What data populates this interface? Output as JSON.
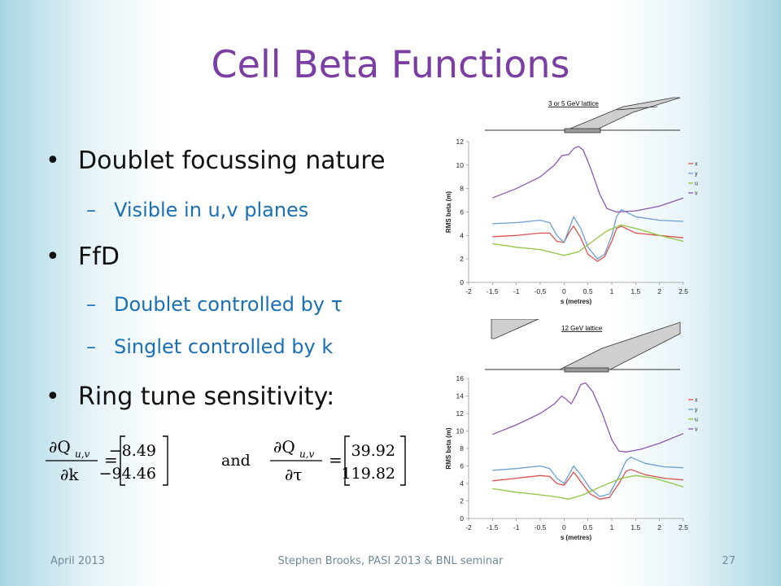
{
  "slide": {
    "title": "Cell Beta Functions",
    "bullets": [
      {
        "level": 1,
        "text": "Doublet focussing nature"
      },
      {
        "level": 2,
        "text": "Visible in u,v planes"
      },
      {
        "level": 1,
        "text": "FfD"
      },
      {
        "level": 2,
        "text": "Doublet controlled by τ"
      },
      {
        "level": 2,
        "text": "Singlet controlled by k"
      },
      {
        "level": 1,
        "text": "Ring tune sensitivity:"
      }
    ],
    "equation": {
      "lhs1_num": "∂Q",
      "lhs1_sub": "u,v",
      "lhs1_den": "∂k",
      "vec1": [
        "−8.49",
        "−94.46"
      ],
      "and": "and",
      "lhs2_num": "∂Q",
      "lhs2_sub": "u,v",
      "lhs2_den": "∂τ",
      "vec2": [
        "39.92",
        "119.82"
      ]
    },
    "footer": {
      "left": "April 2013",
      "center": "Stephen Brooks, PASI 2013 & BNL seminar",
      "right": "27"
    }
  },
  "colors": {
    "title": "#7b3ea3",
    "sub_bullet": "#1b6fb3",
    "x": "#d9534f",
    "y": "#6a9fd4",
    "u": "#8dc63f",
    "v": "#8b58b4"
  },
  "chart_data": [
    {
      "type": "line",
      "title": "3 or 5 GeV lattice",
      "xlabel": "s (metres)",
      "ylabel": "RMS beta (m)",
      "xlim": [
        -2,
        2.5
      ],
      "ylim": [
        0,
        12
      ],
      "xticks": [
        "-2",
        "-1.5",
        "-1",
        "-0.5",
        "0",
        "0.5",
        "1",
        "1.5",
        "2",
        "2.5"
      ],
      "yticks": [
        "0",
        "2",
        "4",
        "6",
        "8",
        "10",
        "12"
      ],
      "legend": [
        "x",
        "y",
        "u",
        "v"
      ],
      "series": [
        {
          "name": "x",
          "points": [
            [
              -1.5,
              3.9
            ],
            [
              -1,
              4.0
            ],
            [
              -0.5,
              4.2
            ],
            [
              -0.3,
              4.2
            ],
            [
              -0.15,
              3.5
            ],
            [
              0,
              3.4
            ],
            [
              0.1,
              4.2
            ],
            [
              0.2,
              4.8
            ],
            [
              0.35,
              3.8
            ],
            [
              0.5,
              2.4
            ],
            [
              0.7,
              1.8
            ],
            [
              0.85,
              2.2
            ],
            [
              1.0,
              3.5
            ],
            [
              1.1,
              4.6
            ],
            [
              1.2,
              4.8
            ],
            [
              1.5,
              4.2
            ],
            [
              2,
              4.0
            ],
            [
              2.5,
              3.8
            ]
          ]
        },
        {
          "name": "y",
          "points": [
            [
              -1.5,
              5.0
            ],
            [
              -1,
              5.1
            ],
            [
              -0.5,
              5.3
            ],
            [
              -0.3,
              5.1
            ],
            [
              -0.15,
              4.0
            ],
            [
              0,
              3.4
            ],
            [
              0.1,
              4.5
            ],
            [
              0.2,
              5.6
            ],
            [
              0.35,
              4.6
            ],
            [
              0.5,
              3.0
            ],
            [
              0.7,
              2.0
            ],
            [
              0.85,
              2.4
            ],
            [
              1.0,
              4.0
            ],
            [
              1.1,
              5.6
            ],
            [
              1.2,
              6.2
            ],
            [
              1.5,
              5.6
            ],
            [
              2,
              5.3
            ],
            [
              2.5,
              5.2
            ]
          ]
        },
        {
          "name": "u",
          "points": [
            [
              -1.5,
              3.3
            ],
            [
              -1,
              3.0
            ],
            [
              -0.5,
              2.8
            ],
            [
              0,
              2.3
            ],
            [
              0.3,
              2.6
            ],
            [
              0.6,
              3.5
            ],
            [
              0.9,
              4.4
            ],
            [
              1.2,
              4.9
            ],
            [
              1.6,
              4.5
            ],
            [
              2,
              4.0
            ],
            [
              2.5,
              3.5
            ]
          ]
        },
        {
          "name": "v",
          "points": [
            [
              -1.5,
              7.2
            ],
            [
              -1,
              8.0
            ],
            [
              -0.5,
              9.0
            ],
            [
              -0.2,
              10.0
            ],
            [
              -0.05,
              10.8
            ],
            [
              0.1,
              10.9
            ],
            [
              0.2,
              11.4
            ],
            [
              0.3,
              11.6
            ],
            [
              0.4,
              11.3
            ],
            [
              0.55,
              9.8
            ],
            [
              0.75,
              7.5
            ],
            [
              0.9,
              6.3
            ],
            [
              1.1,
              6.0
            ],
            [
              1.5,
              6.1
            ],
            [
              2,
              6.5
            ],
            [
              2.5,
              7.2
            ]
          ]
        }
      ]
    },
    {
      "type": "line",
      "title": "12 GeV lattice",
      "xlabel": "s (metres)",
      "ylabel": "RMS beta (m)",
      "xlim": [
        -2,
        2.5
      ],
      "ylim": [
        0,
        16
      ],
      "xticks": [
        "-2",
        "-1.5",
        "-1",
        "-0.5",
        "0",
        "0.5",
        "1",
        "1.5",
        "2",
        "2.5"
      ],
      "yticks": [
        "0",
        "2",
        "4",
        "6",
        "8",
        "10",
        "12",
        "14",
        "16"
      ],
      "legend": [
        "x",
        "y",
        "u",
        "v"
      ],
      "series": [
        {
          "name": "x",
          "points": [
            [
              -1.5,
              4.3
            ],
            [
              -1,
              4.6
            ],
            [
              -0.5,
              4.9
            ],
            [
              -0.3,
              4.8
            ],
            [
              -0.15,
              4.0
            ],
            [
              0,
              3.8
            ],
            [
              0.1,
              4.5
            ],
            [
              0.2,
              5.3
            ],
            [
              0.35,
              4.2
            ],
            [
              0.55,
              2.8
            ],
            [
              0.75,
              2.2
            ],
            [
              0.95,
              2.4
            ],
            [
              1.15,
              4.0
            ],
            [
              1.3,
              5.4
            ],
            [
              1.4,
              5.6
            ],
            [
              1.7,
              5.0
            ],
            [
              2.1,
              4.6
            ],
            [
              2.5,
              4.4
            ]
          ]
        },
        {
          "name": "y",
          "points": [
            [
              -1.5,
              5.5
            ],
            [
              -1,
              5.7
            ],
            [
              -0.5,
              6.0
            ],
            [
              -0.3,
              5.7
            ],
            [
              -0.15,
              4.6
            ],
            [
              0,
              4.0
            ],
            [
              0.1,
              5.0
            ],
            [
              0.2,
              6.0
            ],
            [
              0.35,
              5.0
            ],
            [
              0.55,
              3.4
            ],
            [
              0.75,
              2.5
            ],
            [
              0.95,
              2.8
            ],
            [
              1.15,
              4.8
            ],
            [
              1.3,
              6.6
            ],
            [
              1.4,
              7.0
            ],
            [
              1.7,
              6.3
            ],
            [
              2.1,
              5.9
            ],
            [
              2.5,
              5.8
            ]
          ]
        },
        {
          "name": "u",
          "points": [
            [
              -1.5,
              3.4
            ],
            [
              -1,
              3.0
            ],
            [
              -0.5,
              2.7
            ],
            [
              -0.2,
              2.5
            ],
            [
              0.1,
              2.2
            ],
            [
              0.4,
              2.7
            ],
            [
              0.8,
              3.7
            ],
            [
              1.2,
              4.6
            ],
            [
              1.5,
              4.9
            ],
            [
              1.9,
              4.6
            ],
            [
              2.2,
              4.1
            ],
            [
              2.5,
              3.6
            ]
          ]
        },
        {
          "name": "v",
          "points": [
            [
              -1.5,
              9.6
            ],
            [
              -1,
              10.7
            ],
            [
              -0.5,
              12.0
            ],
            [
              -0.2,
              13.1
            ],
            [
              -0.05,
              14.0
            ],
            [
              0.05,
              13.6
            ],
            [
              0.15,
              13.1
            ],
            [
              0.25,
              14.1
            ],
            [
              0.35,
              15.3
            ],
            [
              0.45,
              15.5
            ],
            [
              0.6,
              14.5
            ],
            [
              0.8,
              12.0
            ],
            [
              1.0,
              9.0
            ],
            [
              1.15,
              7.7
            ],
            [
              1.3,
              7.6
            ],
            [
              1.6,
              7.9
            ],
            [
              2,
              8.6
            ],
            [
              2.5,
              9.7
            ]
          ]
        }
      ]
    }
  ]
}
